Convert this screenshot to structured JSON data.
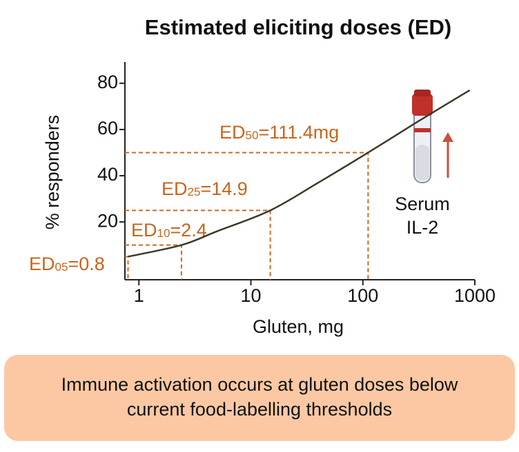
{
  "chart_data": {
    "type": "line",
    "title": "Estimated eliciting doses (ED)",
    "x_label": "Gluten, mg",
    "y_label": "% responders",
    "log_x": true,
    "xlim": [
      0.75,
      1000
    ],
    "xticks": [
      1,
      10,
      100,
      1000
    ],
    "ylim": [
      -5,
      88
    ],
    "yticks": [
      20,
      40,
      60,
      80
    ],
    "series": [
      {
        "color": "#3b3a28",
        "x": [
          0.8,
          2.4,
          5,
          14.9,
          40,
          111.4,
          300,
          900
        ],
        "values": [
          5,
          10,
          16,
          25,
          37,
          50,
          63,
          77
        ]
      }
    ],
    "eliciting_doses": [
      {
        "prefix": "ED",
        "sub": "05",
        "suffix": "=0.8",
        "x": 0.8,
        "y": 5
      },
      {
        "prefix": "ED",
        "sub": "10",
        "suffix": "=2.4",
        "x": 2.4,
        "y": 10
      },
      {
        "prefix": "ED",
        "sub": "25",
        "suffix": "=14.9",
        "x": 14.9,
        "y": 25
      },
      {
        "prefix": "ED",
        "sub": "50",
        "suffix": "=111.4mg",
        "x": 111.4,
        "y": 50
      }
    ],
    "ed_color": "#d2691e",
    "marker_lines": [
      "Serum",
      "IL-2"
    ],
    "conclusion_lines": [
      "Immune activation occurs at gluten doses below",
      "current food-labelling thresholds"
    ]
  }
}
